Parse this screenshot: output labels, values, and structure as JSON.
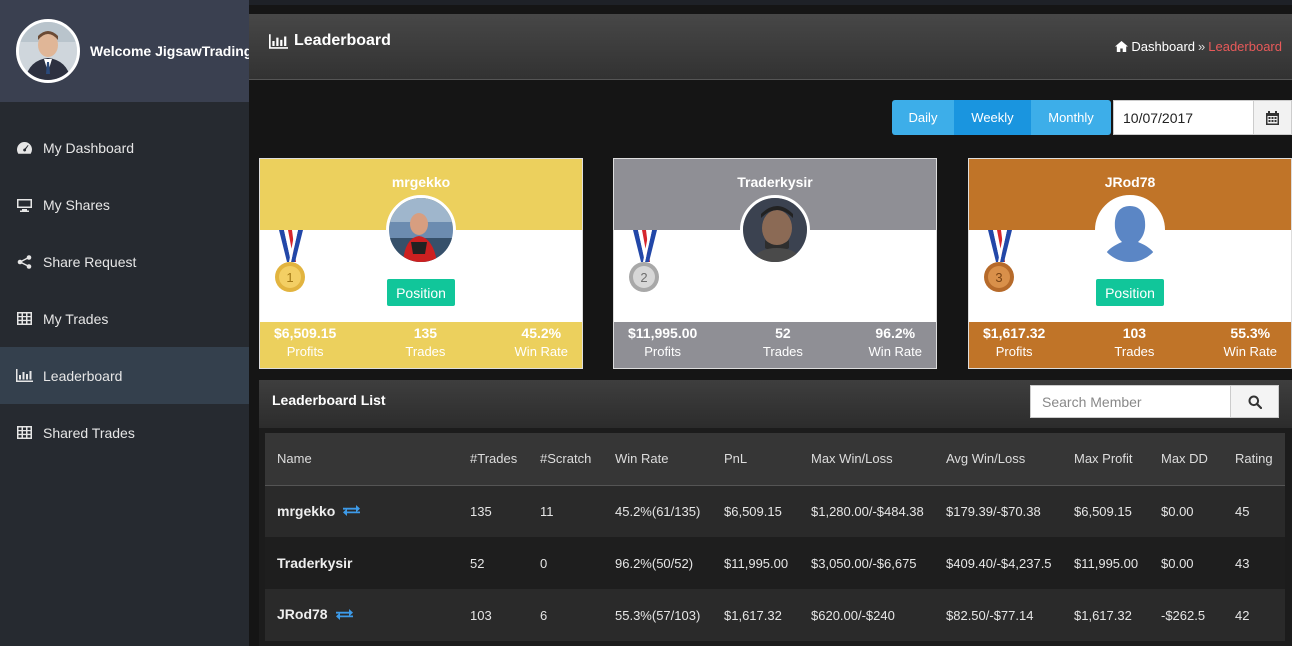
{
  "user": {
    "welcome": "Welcome JigsawTrading"
  },
  "sidebar": {
    "items": [
      {
        "label": "My Dashboard",
        "icon": "dashboard-icon"
      },
      {
        "label": "My Shares",
        "icon": "desktop-icon"
      },
      {
        "label": "Share Request",
        "icon": "share-icon"
      },
      {
        "label": "My Trades",
        "icon": "table-icon"
      },
      {
        "label": "Leaderboard",
        "icon": "bar-chart-icon",
        "active": true
      },
      {
        "label": "Shared Trades",
        "icon": "table-icon"
      }
    ]
  },
  "header": {
    "title": "Leaderboard",
    "breadcrumb": {
      "home": "Dashboard",
      "current": "Leaderboard"
    }
  },
  "period": {
    "daily": "Daily",
    "weekly": "Weekly",
    "monthly": "Monthly",
    "selected": "Weekly",
    "date": "10/07/2017"
  },
  "cards": [
    {
      "name": "mrgekko",
      "rank": 1,
      "color": "#ecd05d",
      "position_label": "Position",
      "profits": "$6,509.15",
      "trades": "135",
      "win_rate": "45.2%"
    },
    {
      "name": "Traderkysir",
      "rank": 2,
      "color": "#8f8f95",
      "position_label": "",
      "profits": "$11,995.00",
      "trades": "52",
      "win_rate": "96.2%"
    },
    {
      "name": "JRod78",
      "rank": 3,
      "color": "#c07428",
      "position_label": "Position",
      "profits": "$1,617.32",
      "trades": "103",
      "win_rate": "55.3%"
    }
  ],
  "stat_labels": {
    "profits": "Profits",
    "trades": "Trades",
    "win_rate": "Win Rate"
  },
  "list": {
    "title": "Leaderboard List",
    "search_placeholder": "Search Member",
    "columns": [
      "Name",
      "#Trades",
      "#Scratch",
      "Win Rate",
      "PnL",
      "Max Win/Loss",
      "Avg Win/Loss",
      "Max Profit",
      "Max DD",
      "Rating"
    ],
    "rows": [
      {
        "name": "mrgekko",
        "shared": true,
        "trades": "135",
        "scratch": "11",
        "win_rate": "45.2%(61/135)",
        "pnl": "$6,509.15",
        "max_win_loss": "$1,280.00/-$484.38",
        "avg_win_loss": "$179.39/-$70.38",
        "max_profit": "$6,509.15",
        "max_dd": "$0.00",
        "rating": "45"
      },
      {
        "name": "Traderkysir",
        "shared": false,
        "trades": "52",
        "scratch": "0",
        "win_rate": "96.2%(50/52)",
        "pnl": "$11,995.00",
        "max_win_loss": "$3,050.00/-$6,675",
        "avg_win_loss": "$409.40/-$4,237.5",
        "max_profit": "$11,995.00",
        "max_dd": "$0.00",
        "rating": "43"
      },
      {
        "name": "JRod78",
        "shared": true,
        "trades": "103",
        "scratch": "6",
        "win_rate": "55.3%(57/103)",
        "pnl": "$1,617.32",
        "max_win_loss": "$620.00/-$240",
        "avg_win_loss": "$82.50/-$77.14",
        "max_profit": "$1,617.32",
        "max_dd": "-$262.5",
        "rating": "42"
      }
    ]
  }
}
